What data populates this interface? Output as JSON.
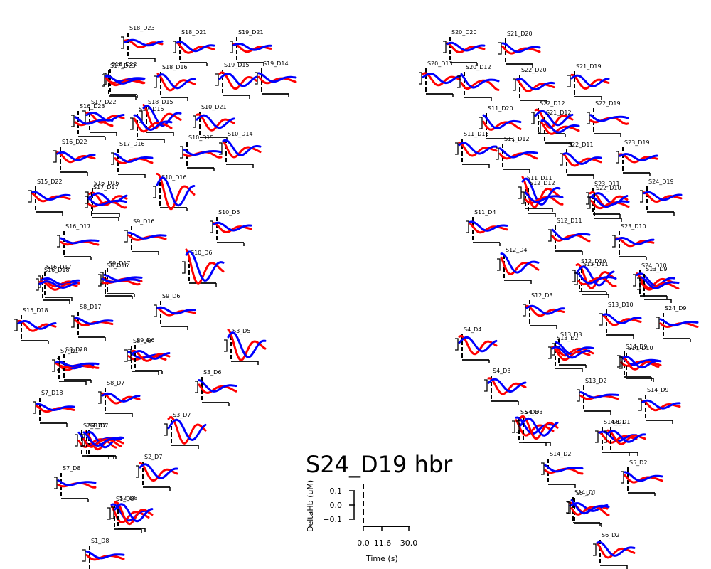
{
  "chart_data": {
    "type": "line",
    "title": "S24_D19 hbr",
    "xlabel": "Time (s)",
    "ylabel": "DeltaHb (uM)",
    "x_ticks": [
      "0.0",
      "11.6",
      "30.0"
    ],
    "y_ticks": [
      "0.1",
      "0.0",
      "−0.1"
    ],
    "xlim": [
      0,
      30
    ],
    "ylim": [
      -0.1,
      0.1
    ],
    "grid": false,
    "colors": {
      "condition_a": "#ff0000",
      "condition_b": "#0000ff"
    },
    "channels": [
      {
        "name": "S18_D23",
        "amp": 0.35,
        "ph": 0.3
      },
      {
        "name": "S18_D21",
        "amp": 0.6,
        "ph": 1.1
      },
      {
        "name": "S19_D21",
        "amp": 0.4,
        "ph": 0.7
      },
      {
        "name": "S18_D22",
        "amp": 0.5,
        "ph": 2.0
      },
      {
        "name": "S17_D23",
        "amp": 0.5,
        "ph": 1.4
      },
      {
        "name": "S18_D16",
        "amp": 0.9,
        "ph": 0.9
      },
      {
        "name": "S19_D15",
        "amp": 0.8,
        "ph": 0.2
      },
      {
        "name": "S19_D14",
        "amp": 0.6,
        "ph": 1.7
      },
      {
        "name": "S17_D22",
        "amp": 0.5,
        "ph": 0.5
      },
      {
        "name": "S18_D15",
        "amp": 1.3,
        "ph": 1.0
      },
      {
        "name": "S16_D23",
        "amp": 0.6,
        "ph": 2.2
      },
      {
        "name": "S17_D15",
        "amp": 1.0,
        "ph": 1.5
      },
      {
        "name": "S10_D21",
        "amp": 0.8,
        "ph": 0.4
      },
      {
        "name": "S10_D15",
        "amp": 0.6,
        "ph": 2.5
      },
      {
        "name": "S10_D14",
        "amp": 1.0,
        "ph": 1.2
      },
      {
        "name": "S16_D22",
        "amp": 0.5,
        "ph": 0.8
      },
      {
        "name": "S17_D16",
        "amp": 0.6,
        "ph": 1.9
      },
      {
        "name": "S10_D16",
        "amp": 1.8,
        "ph": 0.6
      },
      {
        "name": "S15_D22",
        "amp": 0.5,
        "ph": 1.3
      },
      {
        "name": "S16_D16",
        "amp": 0.6,
        "ph": 0.1
      },
      {
        "name": "S17_D17",
        "amp": 0.7,
        "ph": 2.4
      },
      {
        "name": "S9_D16",
        "amp": 0.4,
        "ph": 1.6
      },
      {
        "name": "S10_D5",
        "amp": 0.5,
        "ph": 0.9
      },
      {
        "name": "S16_D17",
        "amp": 0.4,
        "ph": 2.1
      },
      {
        "name": "S10_D6",
        "amp": 1.9,
        "ph": 1.0
      },
      {
        "name": "S16_D17",
        "amp": 0.4,
        "ph": 0.7
      },
      {
        "name": "S9_D17",
        "amp": 0.4,
        "ph": 1.8
      },
      {
        "name": "S16_D18",
        "amp": 0.4,
        "ph": 0.3
      },
      {
        "name": "S8_D16",
        "amp": 0.4,
        "ph": 2.6
      },
      {
        "name": "S9_D6",
        "amp": 0.4,
        "ph": 1.1
      },
      {
        "name": "S15_D18",
        "amp": 0.5,
        "ph": 0.5
      },
      {
        "name": "S8_D17",
        "amp": 0.4,
        "ph": 1.5
      },
      {
        "name": "S3_D5",
        "amp": 1.6,
        "ph": 0.8
      },
      {
        "name": "S8_D6",
        "amp": 0.5,
        "ph": 2.0
      },
      {
        "name": "S9_D6",
        "amp": 0.5,
        "ph": 0.4
      },
      {
        "name": "S7_D17",
        "amp": 0.4,
        "ph": 1.2
      },
      {
        "name": "S8_D18",
        "amp": 0.4,
        "ph": 2.3
      },
      {
        "name": "S3_D6",
        "amp": 0.8,
        "ph": 1.7
      },
      {
        "name": "S8_D7",
        "amp": 0.5,
        "ph": 0.6
      },
      {
        "name": "S7_D18",
        "amp": 0.4,
        "ph": 1.4
      },
      {
        "name": "S3_D7",
        "amp": 1.3,
        "ph": 0.2
      },
      {
        "name": "S2_D7",
        "amp": 1.1,
        "ph": 2.1
      },
      {
        "name": "S8_D7",
        "amp": 1.0,
        "ph": 1.0
      },
      {
        "name": "S2_D7",
        "amp": 1.0,
        "ph": 1.9
      },
      {
        "name": "S2_D7",
        "amp": 0.9,
        "ph": 0.7
      },
      {
        "name": "S7_D8",
        "amp": 0.5,
        "ph": 2.4
      },
      {
        "name": "S1_D8",
        "amp": 1.1,
        "ph": 1.3
      },
      {
        "name": "S2_D8",
        "amp": 1.1,
        "ph": 0.5
      },
      {
        "name": "S1_D8",
        "amp": 0.5,
        "ph": 1.8
      },
      {
        "name": "S20_D20",
        "amp": 0.5,
        "ph": 0.9
      },
      {
        "name": "S21_D20",
        "amp": 0.6,
        "ph": 1.6
      },
      {
        "name": "S20_D13",
        "amp": 0.6,
        "ph": 0.3
      },
      {
        "name": "S20_D12",
        "amp": 1.2,
        "ph": 2.2
      },
      {
        "name": "S22_D20",
        "amp": 0.7,
        "ph": 1.1
      },
      {
        "name": "S21_D19",
        "amp": 0.7,
        "ph": 0.6
      },
      {
        "name": "S11_D20",
        "amp": 1.0,
        "ph": 1.9
      },
      {
        "name": "S22_D12",
        "amp": 0.9,
        "ph": 0.4
      },
      {
        "name": "S22_D19",
        "amp": 0.7,
        "ph": 2.5
      },
      {
        "name": "S21_D12",
        "amp": 0.8,
        "ph": 1.4
      },
      {
        "name": "S11_D13",
        "amp": 0.7,
        "ph": 0.8
      },
      {
        "name": "S11_D12",
        "amp": 0.7,
        "ph": 2.0
      },
      {
        "name": "S22_D11",
        "amp": 0.7,
        "ph": 1.2
      },
      {
        "name": "S23_D19",
        "amp": 0.4,
        "ph": 0.5
      },
      {
        "name": "S11_D11",
        "amp": 1.7,
        "ph": 1.0
      },
      {
        "name": "S12_D12",
        "amp": 0.9,
        "ph": 2.3
      },
      {
        "name": "S23_D11",
        "amp": 0.7,
        "ph": 0.2
      },
      {
        "name": "S22_D10",
        "amp": 0.7,
        "ph": 1.7
      },
      {
        "name": "S24_D19",
        "amp": 0.5,
        "ph": 0.9
      },
      {
        "name": "S11_D4",
        "amp": 0.6,
        "ph": 1.3
      },
      {
        "name": "S12_D11",
        "amp": 0.8,
        "ph": 2.1
      },
      {
        "name": "S23_D10",
        "amp": 0.4,
        "ph": 0.6
      },
      {
        "name": "S12_D4",
        "amp": 1.3,
        "ph": 1.5
      },
      {
        "name": "S12_D10",
        "amp": 1.2,
        "ph": 0.4
      },
      {
        "name": "S13_D11",
        "amp": 1.0,
        "ph": 2.4
      },
      {
        "name": "S24_D10",
        "amp": 0.8,
        "ph": 1.0
      },
      {
        "name": "S13_D9",
        "amp": 0.8,
        "ph": 1.8
      },
      {
        "name": "S12_D3",
        "amp": 0.5,
        "ph": 0.7
      },
      {
        "name": "S13_D10",
        "amp": 0.6,
        "ph": 1.2
      },
      {
        "name": "S24_D9",
        "amp": 0.5,
        "ph": 2.0
      },
      {
        "name": "S4_D4",
        "amp": 0.9,
        "ph": 0.3
      },
      {
        "name": "S13_D3",
        "amp": 0.8,
        "ph": 1.6
      },
      {
        "name": "S13_D2",
        "amp": 0.7,
        "ph": 0.9
      },
      {
        "name": "S14_D9",
        "amp": 0.7,
        "ph": 2.2
      },
      {
        "name": "S14_D10",
        "amp": 0.7,
        "ph": 1.1
      },
      {
        "name": "S4_D3",
        "amp": 0.8,
        "ph": 0.5
      },
      {
        "name": "S13_D2",
        "amp": 0.4,
        "ph": 1.9
      },
      {
        "name": "S14_D9",
        "amp": 0.5,
        "ph": 0.8
      },
      {
        "name": "S5_D3",
        "amp": 1.1,
        "ph": 1.4
      },
      {
        "name": "S4_D3",
        "amp": 1.1,
        "ph": 0.2
      },
      {
        "name": "S14_D2",
        "amp": 0.6,
        "ph": 2.3
      },
      {
        "name": "S14_D1",
        "amp": 0.6,
        "ph": 1.0
      },
      {
        "name": "S5_D2",
        "amp": 0.6,
        "ph": 1.6
      },
      {
        "name": "S14_D1",
        "amp": 0.5,
        "ph": 0.4
      },
      {
        "name": "S5_D1",
        "amp": 1.1,
        "ph": 2.1
      },
      {
        "name": "S6_D2",
        "amp": 0.9,
        "ph": 1.2
      },
      {
        "name": "S6_D1",
        "amp": 0.7,
        "ph": 0.7
      }
    ]
  }
}
